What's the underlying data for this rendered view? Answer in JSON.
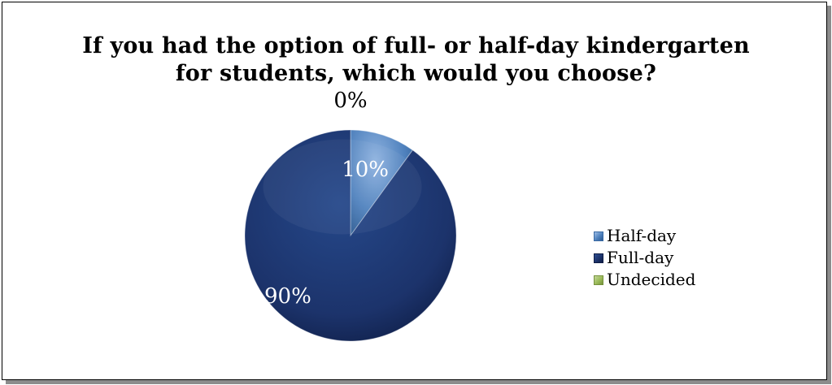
{
  "chart_data": {
    "type": "pie",
    "title": "If you had the option of full- or half-day kindergarten for students, which would you choose?",
    "title_lines": [
      "If you had the option of full- or half-day kindergarten",
      "for students, which would you choose?"
    ],
    "categories": [
      "Half-day",
      "Full-day",
      "Undecided"
    ],
    "values": [
      10,
      90,
      0
    ],
    "data_labels": [
      "10%",
      "90%",
      "0%"
    ],
    "colors": [
      "#4f81bd",
      "#1f3b73",
      "#9bbb59"
    ],
    "legend_position": "right",
    "style": "3d-shaded"
  }
}
